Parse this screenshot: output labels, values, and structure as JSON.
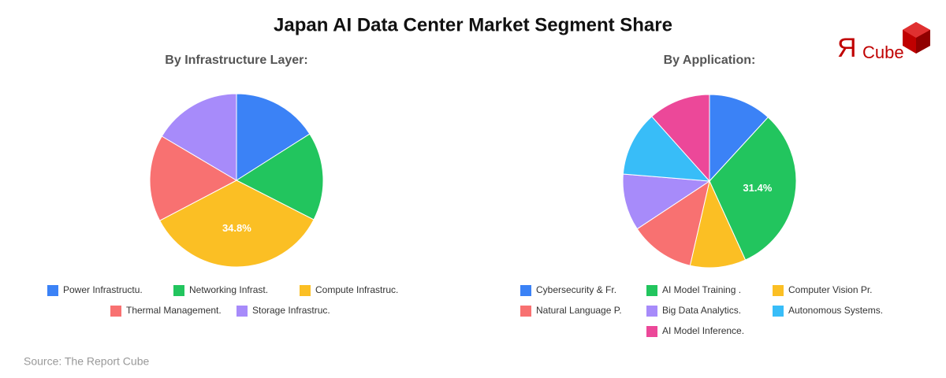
{
  "title": "Japan AI Data Center Market Segment Share",
  "source": "Source: The Report Cube",
  "logo": {
    "mark": "Я",
    "text": "Cube"
  },
  "chart_data": [
    {
      "type": "pie",
      "title": "By Infrastructure Layer:",
      "categories": [
        "Power Infrastructu.",
        "Networking Infrast.",
        "Compute Infrastruc.",
        "Thermal Management.",
        "Storage Infrastruc."
      ],
      "values": [
        16.0,
        16.5,
        34.8,
        16.2,
        16.5
      ],
      "value_labels": [
        null,
        null,
        "34.8%",
        null,
        null
      ],
      "colors": [
        "#3b82f6",
        "#22c55e",
        "#fbbf24",
        "#f87171",
        "#a78bfa"
      ]
    },
    {
      "type": "pie",
      "title": "By Application:",
      "categories": [
        "Cybersecurity & Fr.",
        "AI Model Training .",
        "Computer Vision Pr.",
        "Natural Language P.",
        "Big Data Analytics.",
        "Autonomous Systems.",
        "AI Model Inference."
      ],
      "values": [
        11.8,
        31.4,
        10.4,
        12.1,
        10.6,
        12.1,
        11.6
      ],
      "value_labels": [
        null,
        "31.4%",
        null,
        null,
        null,
        null,
        null
      ],
      "colors": [
        "#3b82f6",
        "#22c55e",
        "#fbbf24",
        "#f87171",
        "#a78bfa",
        "#38bdf8",
        "#ec4899"
      ]
    }
  ]
}
